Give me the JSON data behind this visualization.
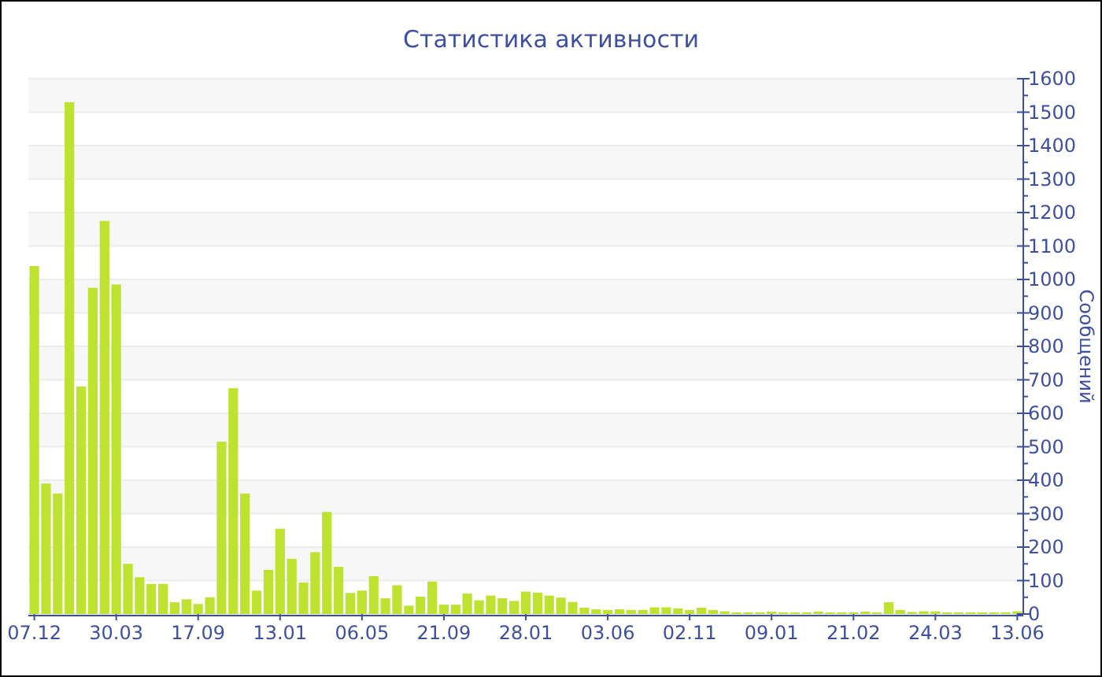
{
  "chart_data": {
    "type": "bar",
    "title": "Статистика активности",
    "ylabel": "Сообщений",
    "categories": [
      "07.12",
      null,
      null,
      null,
      null,
      null,
      null,
      "30.03",
      null,
      null,
      null,
      null,
      null,
      null,
      "17.09",
      null,
      null,
      null,
      null,
      null,
      null,
      "13.01",
      null,
      null,
      null,
      null,
      null,
      null,
      "06.05",
      null,
      null,
      null,
      null,
      null,
      null,
      "21.09",
      null,
      null,
      null,
      null,
      null,
      null,
      "28.01",
      null,
      null,
      null,
      null,
      null,
      null,
      "03.06",
      null,
      null,
      null,
      null,
      null,
      null,
      "02.11",
      null,
      null,
      null,
      null,
      null,
      null,
      "09.01",
      null,
      null,
      null,
      null,
      null,
      null,
      "21.02",
      null,
      null,
      null,
      null,
      null,
      null,
      "24.03",
      null,
      null,
      null,
      null,
      null,
      null,
      "13.06"
    ],
    "values": [
      1040,
      390,
      360,
      1530,
      680,
      975,
      1175,
      985,
      150,
      110,
      90,
      90,
      35,
      44,
      30,
      50,
      515,
      675,
      360,
      70,
      132,
      255,
      165,
      94,
      185,
      305,
      141,
      63,
      70,
      113,
      47,
      86,
      25,
      52,
      97,
      28,
      28,
      61,
      41,
      55,
      47,
      39,
      67,
      64,
      55,
      49,
      36,
      19,
      14,
      12,
      14,
      12,
      12,
      20,
      20,
      17,
      12,
      19,
      12,
      8,
      5,
      5,
      5,
      7,
      5,
      5,
      5,
      7,
      5,
      5,
      5,
      7,
      5,
      35,
      12,
      6,
      8,
      8,
      5,
      5,
      5,
      5,
      5,
      5,
      8
    ],
    "color": "#bde22f",
    "ylim": [
      0,
      1600
    ],
    "yticks": [
      0,
      100,
      200,
      300,
      400,
      500,
      600,
      700,
      800,
      900,
      1000,
      1100,
      1200,
      1300,
      1400,
      1500,
      1600
    ],
    "grid": true
  }
}
